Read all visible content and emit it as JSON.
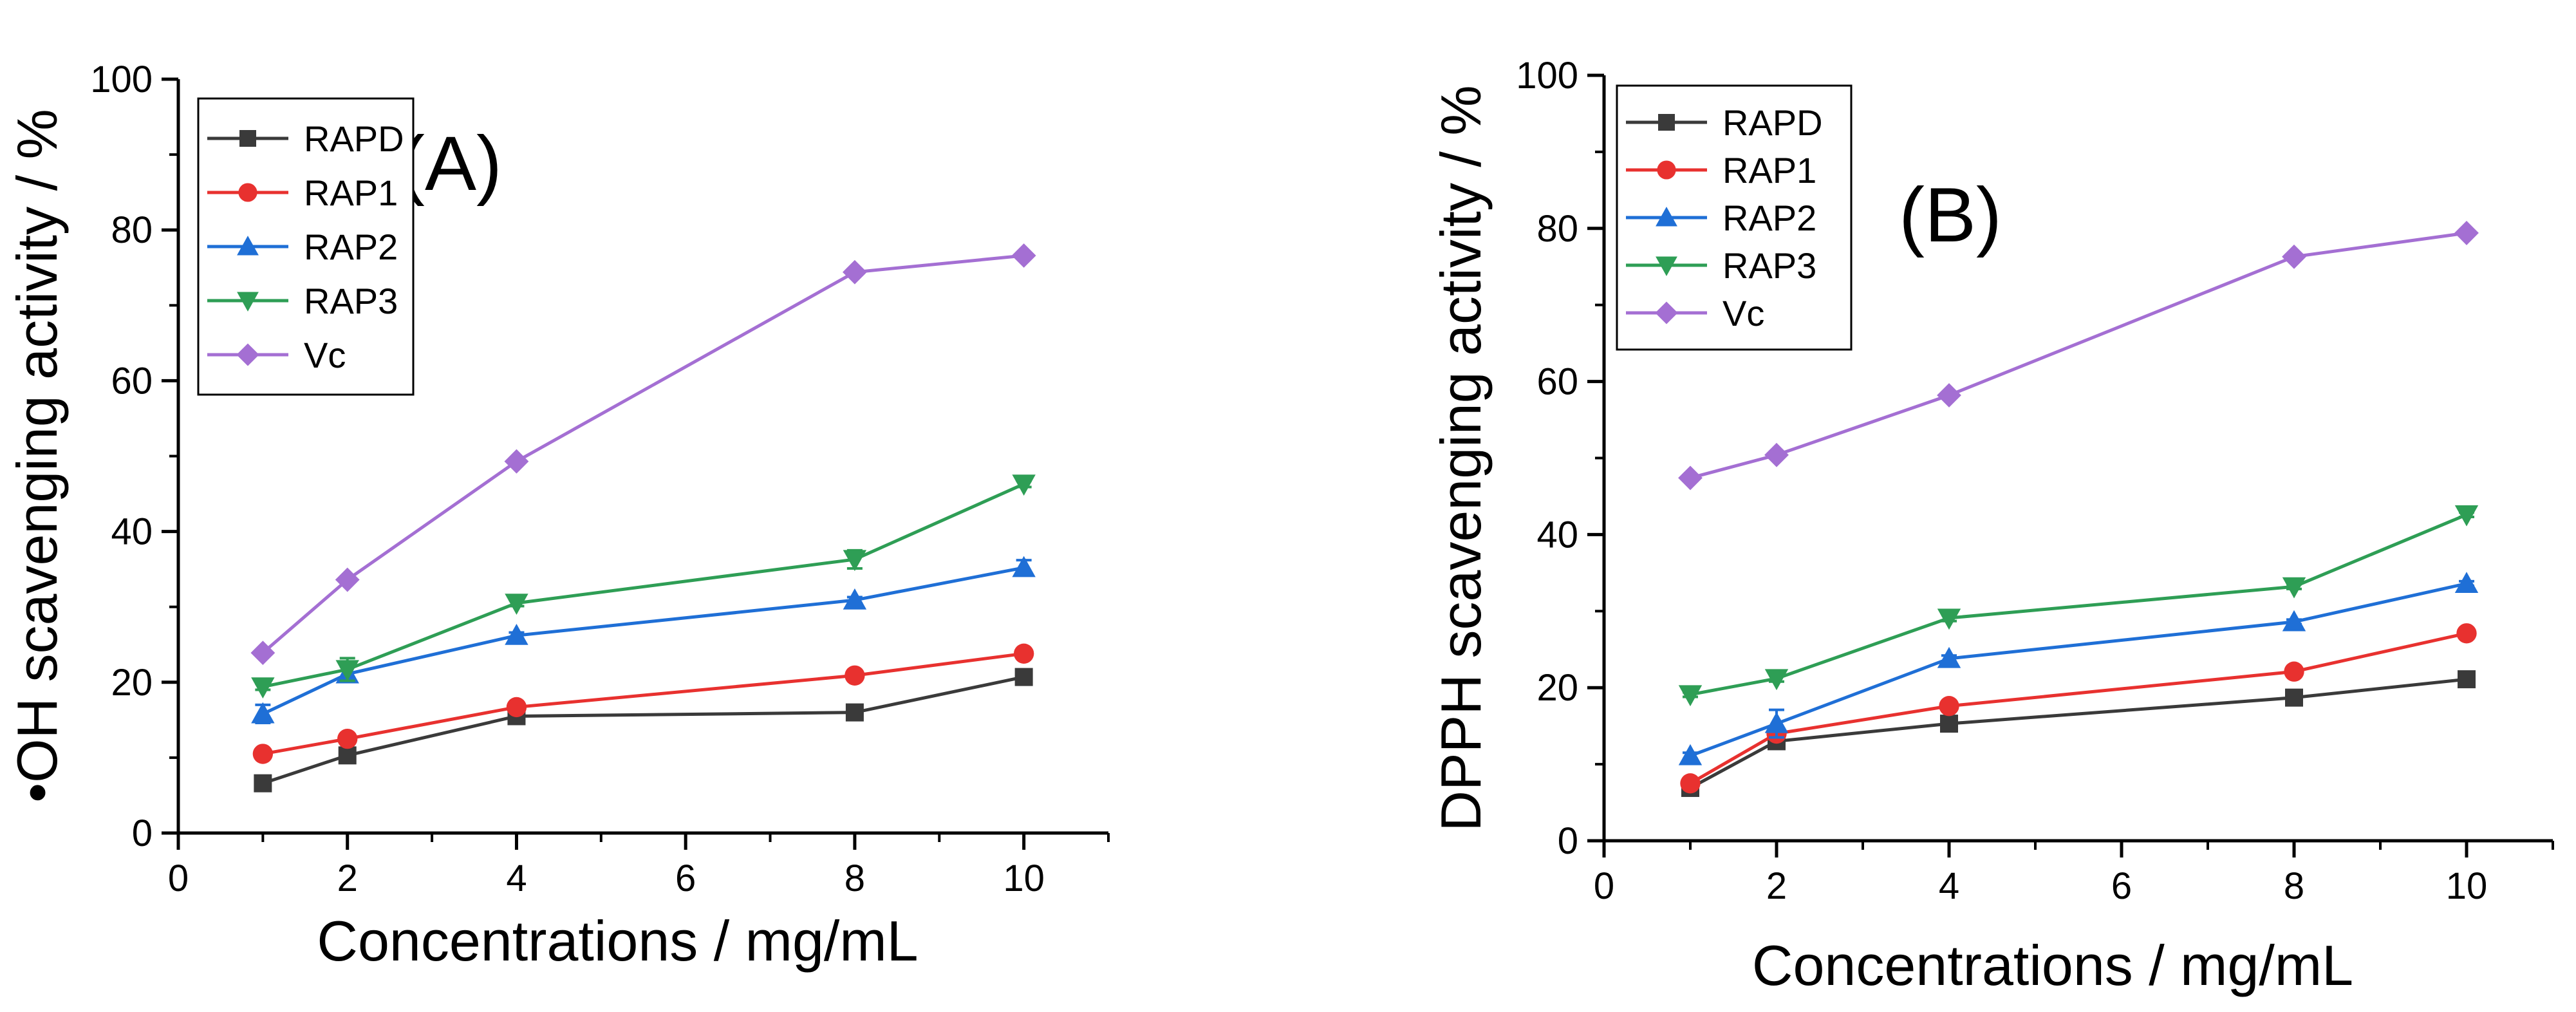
{
  "chart_data": [
    {
      "type": "line",
      "panel_label": "(A)",
      "x": [
        1,
        2,
        4,
        8,
        10
      ],
      "xlabel": "Concentrations / mg/mL",
      "ylabel": "•OH scavenging activity /  %",
      "xlim": [
        0,
        11
      ],
      "ylim": [
        0,
        100
      ],
      "xticks": [
        0,
        2,
        4,
        6,
        8,
        10
      ],
      "yticks": [
        0,
        20,
        40,
        60,
        80,
        100
      ],
      "legend_position": "top-left",
      "series": [
        {
          "name": "RAPD",
          "color": "#3a3a3a",
          "marker": "square",
          "values": [
            6.6,
            10.3,
            15.5,
            16.0,
            20.7
          ],
          "errors": [
            0.3,
            0.4,
            0.3,
            0.3,
            0.5
          ]
        },
        {
          "name": "RAP1",
          "color": "#e8312f",
          "marker": "circle",
          "values": [
            10.5,
            12.5,
            16.7,
            20.9,
            23.8
          ],
          "errors": [
            0.3,
            0.4,
            0.3,
            0.4,
            0.3
          ]
        },
        {
          "name": "RAP2",
          "color": "#1f6fd6",
          "marker": "triangle-up",
          "values": [
            15.8,
            21.1,
            26.2,
            30.9,
            35.2
          ],
          "errors": [
            1.2,
            1.0,
            0.4,
            0.4,
            1.0
          ]
        },
        {
          "name": "RAP3",
          "color": "#2e9e55",
          "marker": "triangle-down",
          "values": [
            19.4,
            21.7,
            30.5,
            36.3,
            46.3
          ],
          "errors": [
            0.4,
            1.5,
            0.4,
            1.2,
            0.4
          ]
        },
        {
          "name": "Vc",
          "color": "#a46fd3",
          "marker": "diamond",
          "values": [
            23.9,
            33.6,
            49.3,
            74.4,
            76.6
          ],
          "errors": [
            0.3,
            0.3,
            0.3,
            0.3,
            0.3
          ]
        }
      ]
    },
    {
      "type": "line",
      "panel_label": "(B)",
      "x": [
        1,
        2,
        4,
        8,
        10
      ],
      "xlabel": "Concentrations / mg/mL",
      "ylabel": "DPPH scavenging activity /  %",
      "xlim": [
        0,
        11
      ],
      "ylim": [
        0,
        100
      ],
      "xticks": [
        0,
        2,
        4,
        6,
        8,
        10
      ],
      "yticks": [
        0,
        20,
        40,
        60,
        80,
        100
      ],
      "legend_position": "top-left",
      "series": [
        {
          "name": "RAPD",
          "color": "#3a3a3a",
          "marker": "square",
          "values": [
            6.9,
            13.0,
            15.3,
            18.7,
            21.1
          ],
          "errors": [
            0.3,
            0.3,
            0.3,
            0.3,
            0.3
          ]
        },
        {
          "name": "RAP1",
          "color": "#e8312f",
          "marker": "circle",
          "values": [
            7.5,
            14.0,
            17.6,
            22.1,
            27.1
          ],
          "errors": [
            0.3,
            0.4,
            0.3,
            0.3,
            0.3
          ]
        },
        {
          "name": "RAP2",
          "color": "#1f6fd6",
          "marker": "triangle-up",
          "values": [
            11.1,
            15.3,
            23.8,
            28.6,
            33.6
          ],
          "errors": [
            0.4,
            1.8,
            0.4,
            0.3,
            0.3
          ]
        },
        {
          "name": "RAP3",
          "color": "#2e9e55",
          "marker": "triangle-down",
          "values": [
            19.1,
            21.2,
            29.1,
            33.2,
            42.6
          ],
          "errors": [
            0.3,
            0.4,
            0.4,
            0.3,
            0.3
          ]
        },
        {
          "name": "Vc",
          "color": "#a46fd3",
          "marker": "diamond",
          "values": [
            47.4,
            50.4,
            58.2,
            76.3,
            79.4
          ],
          "errors": [
            0.3,
            0.3,
            0.3,
            0.3,
            0.3
          ]
        }
      ]
    }
  ]
}
